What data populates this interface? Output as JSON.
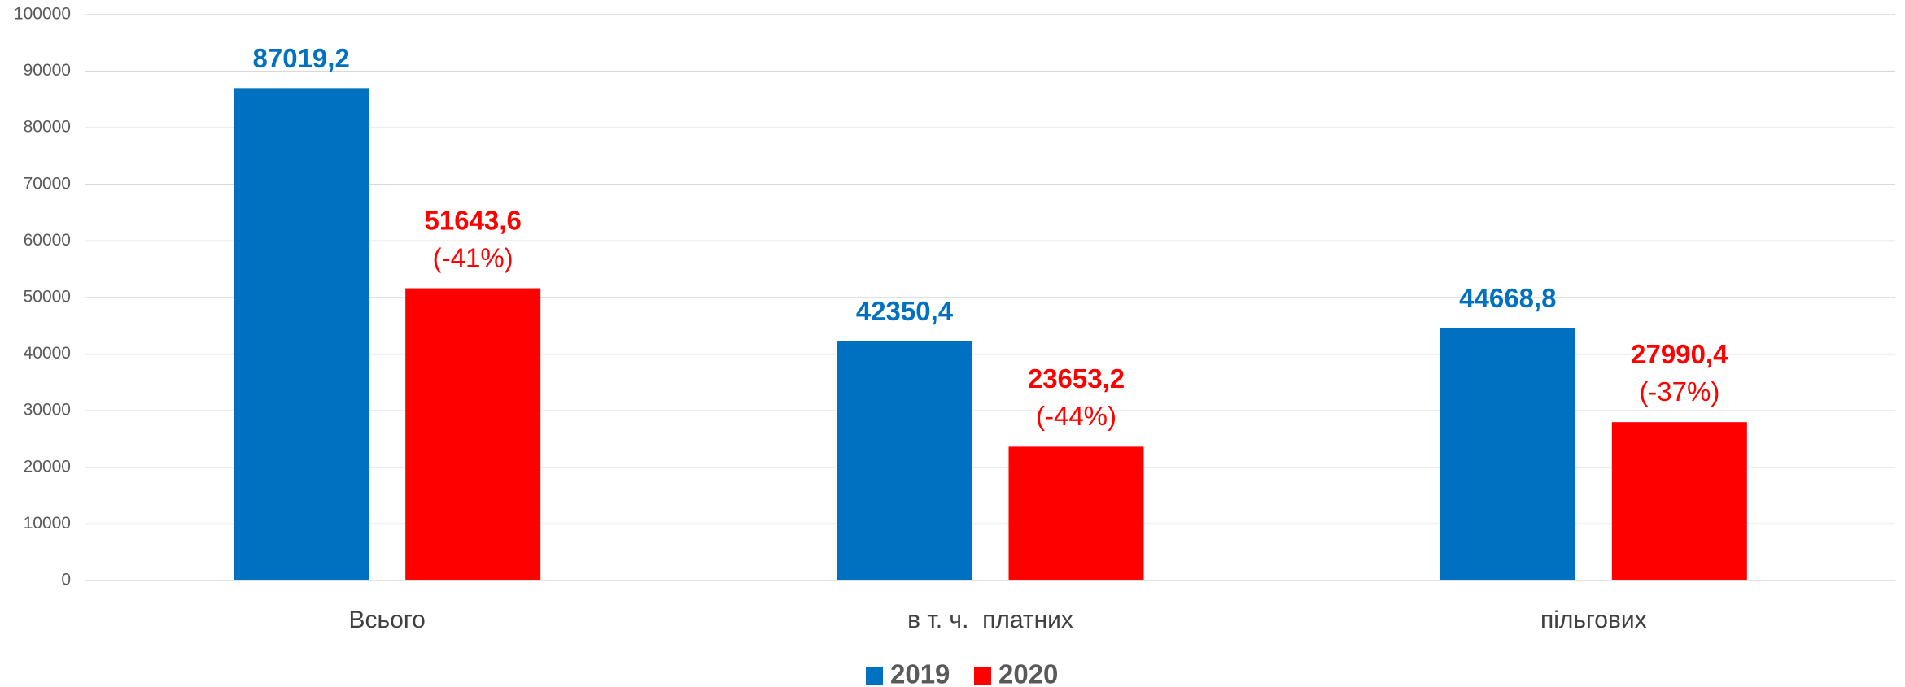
{
  "chart_data": {
    "type": "bar",
    "categories": [
      "Всього",
      "в т. ч.  платних",
      "пільгових"
    ],
    "series": [
      {
        "name": "2019",
        "color": "#0070c0",
        "values": [
          87019.2,
          42350.4,
          44668.8
        ],
        "value_labels": [
          "87019,2",
          "42350,4",
          "44668,8"
        ]
      },
      {
        "name": "2020",
        "color": "#ff0000",
        "values": [
          51643.6,
          23653.2,
          27990.4
        ],
        "value_labels": [
          "51643,6",
          "23653,2",
          "27990,4"
        ],
        "change_labels": [
          "(-41%)",
          "(-44%)",
          "(-37%)"
        ]
      }
    ],
    "ylim": [
      0,
      100000
    ],
    "yticks": [
      0,
      10000,
      20000,
      30000,
      40000,
      50000,
      60000,
      70000,
      80000,
      90000,
      100000
    ],
    "grid": true,
    "legend": "bottom"
  }
}
